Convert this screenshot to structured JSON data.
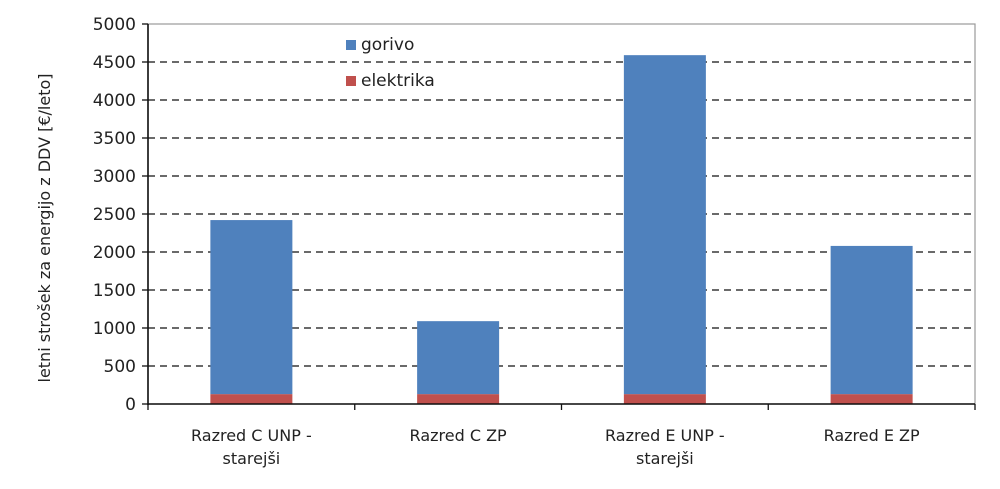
{
  "chart_data": {
    "type": "bar",
    "stacked": true,
    "title": "",
    "xlabel": "",
    "ylabel": "letni strošek za energijo z DDV [€/leto]",
    "ylim": [
      0,
      5000
    ],
    "yticks": [
      0,
      500,
      1000,
      1500,
      2000,
      2500,
      3000,
      3500,
      4000,
      4500,
      5000
    ],
    "grid": "horizontal dashed",
    "legend_position": "top-left inside",
    "categories": [
      [
        "Razred C UNP -",
        "starejši"
      ],
      [
        "Razred C ZP"
      ],
      [
        "Razred E UNP -",
        "starejši"
      ],
      [
        "Razred E ZP"
      ]
    ],
    "series": [
      {
        "name": "elektrika",
        "color": "#c0504d",
        "values": [
          130,
          130,
          130,
          130
        ]
      },
      {
        "name": "gorivo",
        "color": "#4f81bd",
        "values": [
          2290,
          960,
          4460,
          1950
        ]
      }
    ],
    "totals": [
      2420,
      1090,
      4590,
      2080
    ]
  },
  "legend": {
    "items": [
      {
        "label": "gorivo",
        "color": "#4f81bd"
      },
      {
        "label": "elektrika",
        "color": "#c0504d"
      }
    ]
  }
}
